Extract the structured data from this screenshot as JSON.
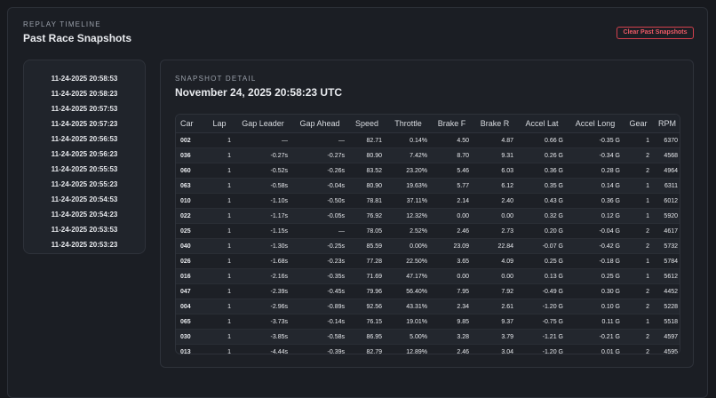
{
  "header": {
    "eyebrow": "REPLAY TIMELINE",
    "title": "Past Race Snapshots",
    "button": "Clear Past Snapshots"
  },
  "snapshots": [
    "11-24-2025 20:58:53",
    "11-24-2025 20:58:23",
    "11-24-2025 20:57:53",
    "11-24-2025 20:57:23",
    "11-24-2025 20:56:53",
    "11-24-2025 20:56:23",
    "11-24-2025 20:55:53",
    "11-24-2025 20:55:23",
    "11-24-2025 20:54:53",
    "11-24-2025 20:54:23",
    "11-24-2025 20:53:53",
    "11-24-2025 20:53:23"
  ],
  "detail": {
    "eyebrow": "SNAPSHOT DETAIL",
    "title": "November 24, 2025 20:58:23 UTC"
  },
  "table": {
    "columns": [
      "Car",
      "Lap",
      "Gap Leader",
      "Gap Ahead",
      "Speed",
      "Throttle",
      "Brake F",
      "Brake R",
      "Accel Lat",
      "Accel Long",
      "Gear",
      "RPM"
    ],
    "rows": [
      [
        "002",
        "1",
        "—",
        "—",
        "82.71",
        "0.14%",
        "4.50",
        "4.87",
        "0.66 G",
        "-0.35 G",
        "1",
        "6370"
      ],
      [
        "036",
        "1",
        "-0.27s",
        "-0.27s",
        "80.90",
        "7.42%",
        "8.70",
        "9.31",
        "0.26 G",
        "-0.34 G",
        "2",
        "4568"
      ],
      [
        "060",
        "1",
        "-0.52s",
        "-0.26s",
        "83.52",
        "23.20%",
        "5.46",
        "6.03",
        "0.36 G",
        "0.28 G",
        "2",
        "4964"
      ],
      [
        "063",
        "1",
        "-0.58s",
        "-0.04s",
        "80.90",
        "19.63%",
        "5.77",
        "6.12",
        "0.35 G",
        "0.14 G",
        "1",
        "6311"
      ],
      [
        "010",
        "1",
        "-1.10s",
        "-0.50s",
        "78.81",
        "37.11%",
        "2.14",
        "2.40",
        "0.43 G",
        "0.36 G",
        "1",
        "6012"
      ],
      [
        "022",
        "1",
        "-1.17s",
        "-0.05s",
        "76.92",
        "12.32%",
        "0.00",
        "0.00",
        "0.32 G",
        "0.12 G",
        "1",
        "5920"
      ],
      [
        "025",
        "1",
        "-1.15s",
        "—",
        "78.05",
        "2.52%",
        "2.46",
        "2.73",
        "0.20 G",
        "-0.04 G",
        "2",
        "4617"
      ],
      [
        "040",
        "1",
        "-1.30s",
        "-0.25s",
        "85.59",
        "0.00%",
        "23.09",
        "22.84",
        "-0.07 G",
        "-0.42 G",
        "2",
        "5732"
      ],
      [
        "026",
        "1",
        "-1.68s",
        "-0.23s",
        "77.28",
        "22.50%",
        "3.65",
        "4.09",
        "0.25 G",
        "-0.18 G",
        "1",
        "5784"
      ],
      [
        "016",
        "1",
        "-2.16s",
        "-0.35s",
        "71.69",
        "47.17%",
        "0.00",
        "0.00",
        "0.13 G",
        "0.25 G",
        "1",
        "5612"
      ],
      [
        "047",
        "1",
        "-2.39s",
        "-0.45s",
        "79.96",
        "56.40%",
        "7.95",
        "7.92",
        "-0.49 G",
        "0.30 G",
        "2",
        "4452"
      ],
      [
        "004",
        "1",
        "-2.96s",
        "-0.89s",
        "92.56",
        "43.31%",
        "2.34",
        "2.61",
        "-1.20 G",
        "0.10 G",
        "2",
        "5228"
      ],
      [
        "065",
        "1",
        "-3.73s",
        "-0.14s",
        "76.15",
        "19.01%",
        "9.85",
        "9.37",
        "-0.75 G",
        "0.11 G",
        "1",
        "5518"
      ],
      [
        "030",
        "1",
        "-3.85s",
        "-0.58s",
        "86.95",
        "5.00%",
        "3.28",
        "3.79",
        "-1.21 G",
        "-0.21 G",
        "2",
        "4597"
      ],
      [
        "013",
        "1",
        "-4.44s",
        "-0.39s",
        "82.79",
        "12.89%",
        "2.46",
        "3.04",
        "-1.20 G",
        "0.01 G",
        "2",
        "4595"
      ]
    ]
  }
}
